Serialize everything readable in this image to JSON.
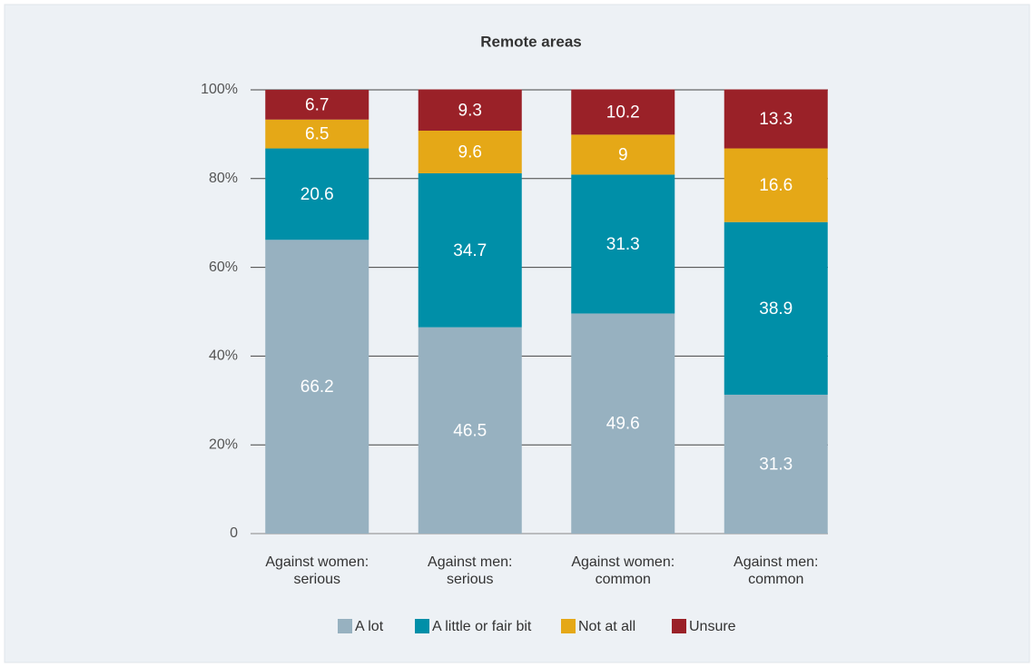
{
  "chart_data": {
    "type": "stacked_bar",
    "title": "Remote areas",
    "categories": [
      "Against women: serious",
      "Against men: serious",
      "Against women: common",
      "Against men: common"
    ],
    "series": [
      {
        "name": "A lot",
        "color": "#97b1c0",
        "values": [
          66.2,
          46.5,
          49.6,
          31.3
        ]
      },
      {
        "name": "A little or fair bit",
        "color": "#008fa8",
        "values": [
          20.6,
          34.7,
          31.3,
          38.9
        ]
      },
      {
        "name": "Not at all",
        "color": "#e5a817",
        "values": [
          6.5,
          9.6,
          9,
          16.6
        ]
      },
      {
        "name": "Unsure",
        "color": "#9a2128",
        "values": [
          6.7,
          9.3,
          10.2,
          13.3
        ]
      }
    ],
    "ylim": [
      0,
      100
    ],
    "yticks": [
      0,
      {
        "value": 20,
        "label": "20%"
      },
      {
        "value": 40,
        "label": "40%"
      },
      {
        "value": 60,
        "label": "60%"
      },
      {
        "value": 80,
        "label": "80%"
      },
      {
        "value": 100,
        "label": "100%"
      }
    ],
    "grid": true,
    "legend": "bottom"
  }
}
